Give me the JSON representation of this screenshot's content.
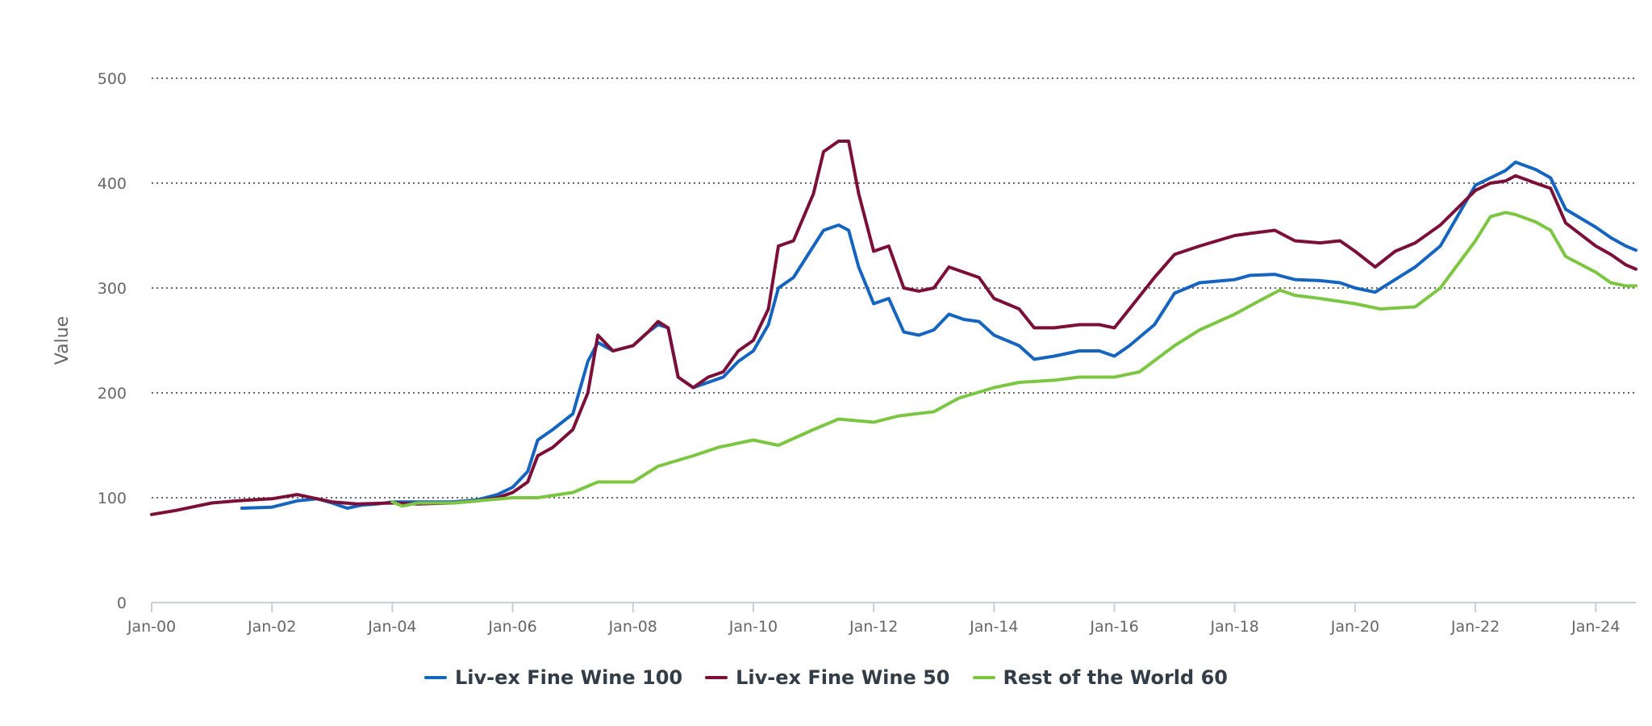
{
  "chart_data": {
    "type": "line",
    "title": "",
    "xlabel": "",
    "ylabel": "Value",
    "ylim": [
      0,
      500
    ],
    "yticks": [
      0,
      100,
      200,
      300,
      400,
      500
    ],
    "xlim": [
      "2000-01",
      "2024-09"
    ],
    "xticks": [
      {
        "date": "2000-01",
        "label": "Jan-00"
      },
      {
        "date": "2002-01",
        "label": "Jan-02"
      },
      {
        "date": "2004-01",
        "label": "Jan-04"
      },
      {
        "date": "2006-01",
        "label": "Jan-06"
      },
      {
        "date": "2008-01",
        "label": "Jan-08"
      },
      {
        "date": "2010-01",
        "label": "Jan-10"
      },
      {
        "date": "2012-01",
        "label": "Jan-12"
      },
      {
        "date": "2014-01",
        "label": "Jan-14"
      },
      {
        "date": "2016-01",
        "label": "Jan-16"
      },
      {
        "date": "2018-01",
        "label": "Jan-18"
      },
      {
        "date": "2020-01",
        "label": "Jan-20"
      },
      {
        "date": "2022-01",
        "label": "Jan-22"
      },
      {
        "date": "2024-01",
        "label": "Jan-24"
      }
    ],
    "grid": "horizontal dotted",
    "legend_position": "bottom-center",
    "series": [
      {
        "name": "Liv-ex Fine Wine 100",
        "color": "#1565c0",
        "points": [
          [
            "2001-07",
            90
          ],
          [
            "2002-01",
            91
          ],
          [
            "2002-06",
            97
          ],
          [
            "2002-10",
            99
          ],
          [
            "2003-01",
            95
          ],
          [
            "2003-04",
            90
          ],
          [
            "2003-07",
            93
          ],
          [
            "2003-10",
            94
          ],
          [
            "2004-01",
            96
          ],
          [
            "2004-06",
            96
          ],
          [
            "2005-01",
            96
          ],
          [
            "2005-06",
            98
          ],
          [
            "2005-10",
            103
          ],
          [
            "2006-01",
            110
          ],
          [
            "2006-04",
            125
          ],
          [
            "2006-06",
            155
          ],
          [
            "2006-09",
            165
          ],
          [
            "2007-01",
            180
          ],
          [
            "2007-04",
            230
          ],
          [
            "2007-06",
            248
          ],
          [
            "2007-09",
            240
          ],
          [
            "2008-01",
            245
          ],
          [
            "2008-04",
            258
          ],
          [
            "2008-06",
            265
          ],
          [
            "2008-08",
            262
          ],
          [
            "2008-10",
            215
          ],
          [
            "2009-01",
            205
          ],
          [
            "2009-04",
            210
          ],
          [
            "2009-07",
            215
          ],
          [
            "2009-10",
            230
          ],
          [
            "2010-01",
            240
          ],
          [
            "2010-04",
            265
          ],
          [
            "2010-06",
            300
          ],
          [
            "2010-09",
            310
          ],
          [
            "2011-01",
            340
          ],
          [
            "2011-03",
            355
          ],
          [
            "2011-06",
            360
          ],
          [
            "2011-08",
            355
          ],
          [
            "2011-10",
            320
          ],
          [
            "2012-01",
            285
          ],
          [
            "2012-04",
            290
          ],
          [
            "2012-07",
            258
          ],
          [
            "2012-10",
            255
          ],
          [
            "2013-01",
            260
          ],
          [
            "2013-04",
            275
          ],
          [
            "2013-07",
            270
          ],
          [
            "2013-10",
            268
          ],
          [
            "2014-01",
            255
          ],
          [
            "2014-06",
            245
          ],
          [
            "2014-09",
            232
          ],
          [
            "2015-01",
            235
          ],
          [
            "2015-06",
            240
          ],
          [
            "2015-10",
            240
          ],
          [
            "2016-01",
            235
          ],
          [
            "2016-04",
            245
          ],
          [
            "2016-09",
            265
          ],
          [
            "2017-01",
            295
          ],
          [
            "2017-06",
            305
          ],
          [
            "2018-01",
            308
          ],
          [
            "2018-04",
            312
          ],
          [
            "2018-09",
            313
          ],
          [
            "2019-01",
            308
          ],
          [
            "2019-06",
            307
          ],
          [
            "2019-10",
            305
          ],
          [
            "2020-01",
            300
          ],
          [
            "2020-05",
            296
          ],
          [
            "2020-09",
            308
          ],
          [
            "2021-01",
            320
          ],
          [
            "2021-06",
            340
          ],
          [
            "2022-01",
            398
          ],
          [
            "2022-04",
            405
          ],
          [
            "2022-07",
            412
          ],
          [
            "2022-09",
            420
          ],
          [
            "2023-01",
            413
          ],
          [
            "2023-04",
            405
          ],
          [
            "2023-07",
            375
          ],
          [
            "2024-01",
            358
          ],
          [
            "2024-04",
            348
          ],
          [
            "2024-07",
            340
          ],
          [
            "2024-09",
            336
          ]
        ]
      },
      {
        "name": "Liv-ex Fine Wine 50",
        "color": "#7b0f38",
        "points": [
          [
            "2000-01",
            84
          ],
          [
            "2000-06",
            88
          ],
          [
            "2001-01",
            95
          ],
          [
            "2001-06",
            97
          ],
          [
            "2002-01",
            99
          ],
          [
            "2002-06",
            103
          ],
          [
            "2002-10",
            99
          ],
          [
            "2003-01",
            96
          ],
          [
            "2003-06",
            94
          ],
          [
            "2004-01",
            95
          ],
          [
            "2004-06",
            94
          ],
          [
            "2005-01",
            95
          ],
          [
            "2005-06",
            97
          ],
          [
            "2005-10",
            100
          ],
          [
            "2006-01",
            105
          ],
          [
            "2006-04",
            115
          ],
          [
            "2006-06",
            140
          ],
          [
            "2006-09",
            148
          ],
          [
            "2007-01",
            165
          ],
          [
            "2007-04",
            200
          ],
          [
            "2007-06",
            255
          ],
          [
            "2007-09",
            240
          ],
          [
            "2008-01",
            245
          ],
          [
            "2008-04",
            258
          ],
          [
            "2008-06",
            268
          ],
          [
            "2008-08",
            262
          ],
          [
            "2008-10",
            215
          ],
          [
            "2009-01",
            205
          ],
          [
            "2009-04",
            215
          ],
          [
            "2009-07",
            220
          ],
          [
            "2009-10",
            240
          ],
          [
            "2010-01",
            250
          ],
          [
            "2010-04",
            280
          ],
          [
            "2010-06",
            340
          ],
          [
            "2010-09",
            345
          ],
          [
            "2011-01",
            390
          ],
          [
            "2011-03",
            430
          ],
          [
            "2011-06",
            440
          ],
          [
            "2011-08",
            440
          ],
          [
            "2011-10",
            390
          ],
          [
            "2012-01",
            335
          ],
          [
            "2012-04",
            340
          ],
          [
            "2012-07",
            300
          ],
          [
            "2012-10",
            297
          ],
          [
            "2013-01",
            300
          ],
          [
            "2013-04",
            320
          ],
          [
            "2013-07",
            315
          ],
          [
            "2013-10",
            310
          ],
          [
            "2014-01",
            290
          ],
          [
            "2014-06",
            280
          ],
          [
            "2014-09",
            262
          ],
          [
            "2015-01",
            262
          ],
          [
            "2015-06",
            265
          ],
          [
            "2015-10",
            265
          ],
          [
            "2016-01",
            262
          ],
          [
            "2016-04",
            280
          ],
          [
            "2016-09",
            310
          ],
          [
            "2017-01",
            332
          ],
          [
            "2017-06",
            340
          ],
          [
            "2018-01",
            350
          ],
          [
            "2018-04",
            352
          ],
          [
            "2018-09",
            355
          ],
          [
            "2019-01",
            345
          ],
          [
            "2019-06",
            343
          ],
          [
            "2019-10",
            345
          ],
          [
            "2020-01",
            335
          ],
          [
            "2020-05",
            320
          ],
          [
            "2020-09",
            335
          ],
          [
            "2021-01",
            343
          ],
          [
            "2021-06",
            360
          ],
          [
            "2022-01",
            393
          ],
          [
            "2022-04",
            400
          ],
          [
            "2022-07",
            402
          ],
          [
            "2022-09",
            407
          ],
          [
            "2023-01",
            400
          ],
          [
            "2023-04",
            395
          ],
          [
            "2023-07",
            362
          ],
          [
            "2024-01",
            340
          ],
          [
            "2024-04",
            332
          ],
          [
            "2024-07",
            322
          ],
          [
            "2024-09",
            318
          ]
        ]
      },
      {
        "name": "Rest of the World 60",
        "color": "#7cc644",
        "points": [
          [
            "2004-01",
            96
          ],
          [
            "2004-03",
            92
          ],
          [
            "2004-06",
            95
          ],
          [
            "2005-01",
            95
          ],
          [
            "2005-06",
            97
          ],
          [
            "2006-01",
            100
          ],
          [
            "2006-06",
            100
          ],
          [
            "2007-01",
            105
          ],
          [
            "2007-06",
            115
          ],
          [
            "2008-01",
            115
          ],
          [
            "2008-06",
            130
          ],
          [
            "2009-01",
            140
          ],
          [
            "2009-06",
            148
          ],
          [
            "2010-01",
            155
          ],
          [
            "2010-06",
            150
          ],
          [
            "2011-01",
            165
          ],
          [
            "2011-06",
            175
          ],
          [
            "2012-01",
            172
          ],
          [
            "2012-06",
            178
          ],
          [
            "2013-01",
            182
          ],
          [
            "2013-06",
            195
          ],
          [
            "2014-01",
            205
          ],
          [
            "2014-06",
            210
          ],
          [
            "2015-01",
            212
          ],
          [
            "2015-06",
            215
          ],
          [
            "2016-01",
            215
          ],
          [
            "2016-06",
            220
          ],
          [
            "2017-01",
            245
          ],
          [
            "2017-06",
            260
          ],
          [
            "2018-01",
            275
          ],
          [
            "2018-06",
            288
          ],
          [
            "2018-10",
            298
          ],
          [
            "2019-01",
            293
          ],
          [
            "2019-06",
            290
          ],
          [
            "2020-01",
            285
          ],
          [
            "2020-06",
            280
          ],
          [
            "2021-01",
            282
          ],
          [
            "2021-06",
            300
          ],
          [
            "2022-01",
            345
          ],
          [
            "2022-04",
            368
          ],
          [
            "2022-07",
            372
          ],
          [
            "2022-09",
            370
          ],
          [
            "2023-01",
            363
          ],
          [
            "2023-04",
            355
          ],
          [
            "2023-07",
            330
          ],
          [
            "2024-01",
            315
          ],
          [
            "2024-04",
            305
          ],
          [
            "2024-07",
            302
          ],
          [
            "2024-09",
            302
          ]
        ]
      }
    ]
  }
}
